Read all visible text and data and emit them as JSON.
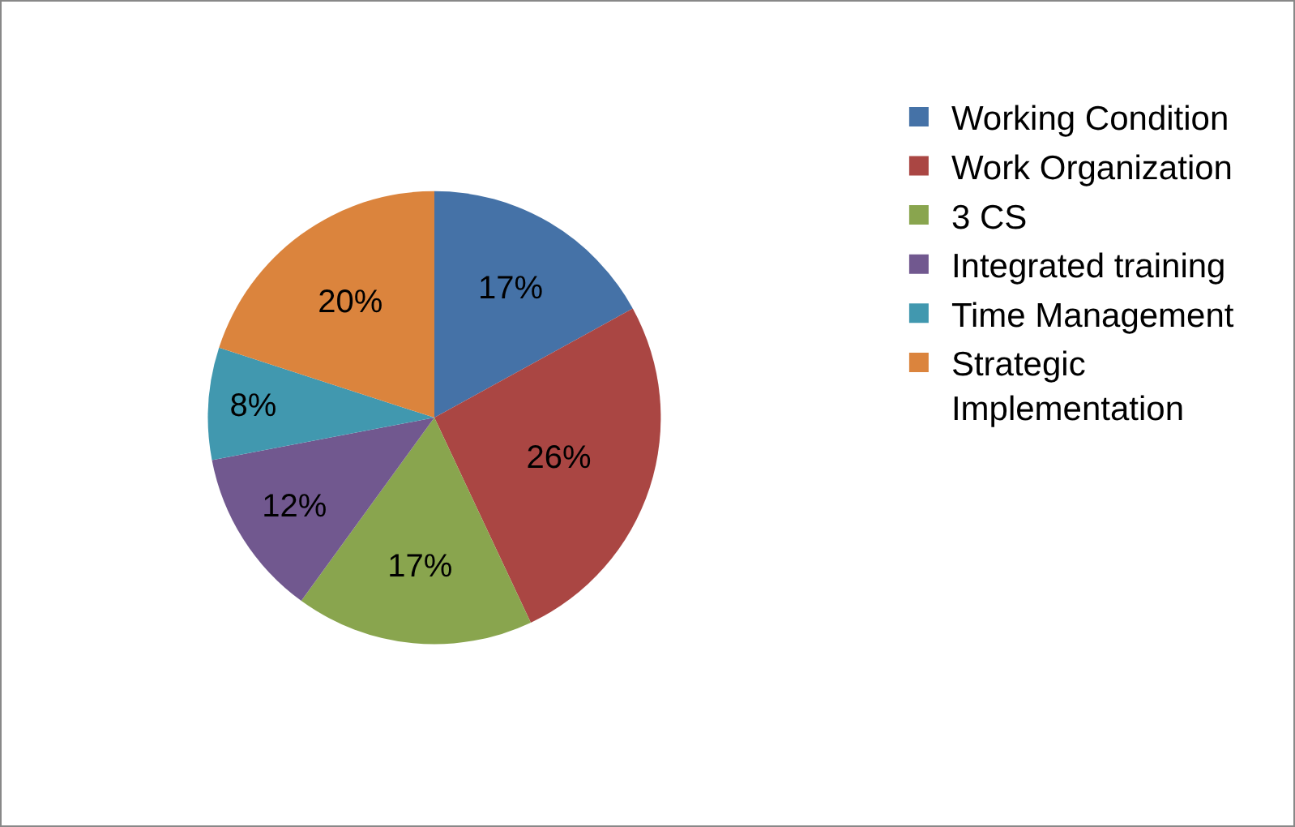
{
  "chart_data": {
    "type": "pie",
    "categories": [
      "Working Condition",
      "Work Organization",
      "3 CS",
      "Integrated training",
      "Time Management",
      "Strategic Implementation"
    ],
    "values": [
      17,
      26,
      17,
      12,
      8,
      20
    ],
    "value_labels": [
      "17%",
      "26%",
      "17%",
      "12%",
      "8%",
      "20%"
    ],
    "colors": [
      "#4572a7",
      "#aa4643",
      "#89a54e",
      "#71588f",
      "#4198af",
      "#db843d"
    ],
    "legend": "right"
  }
}
